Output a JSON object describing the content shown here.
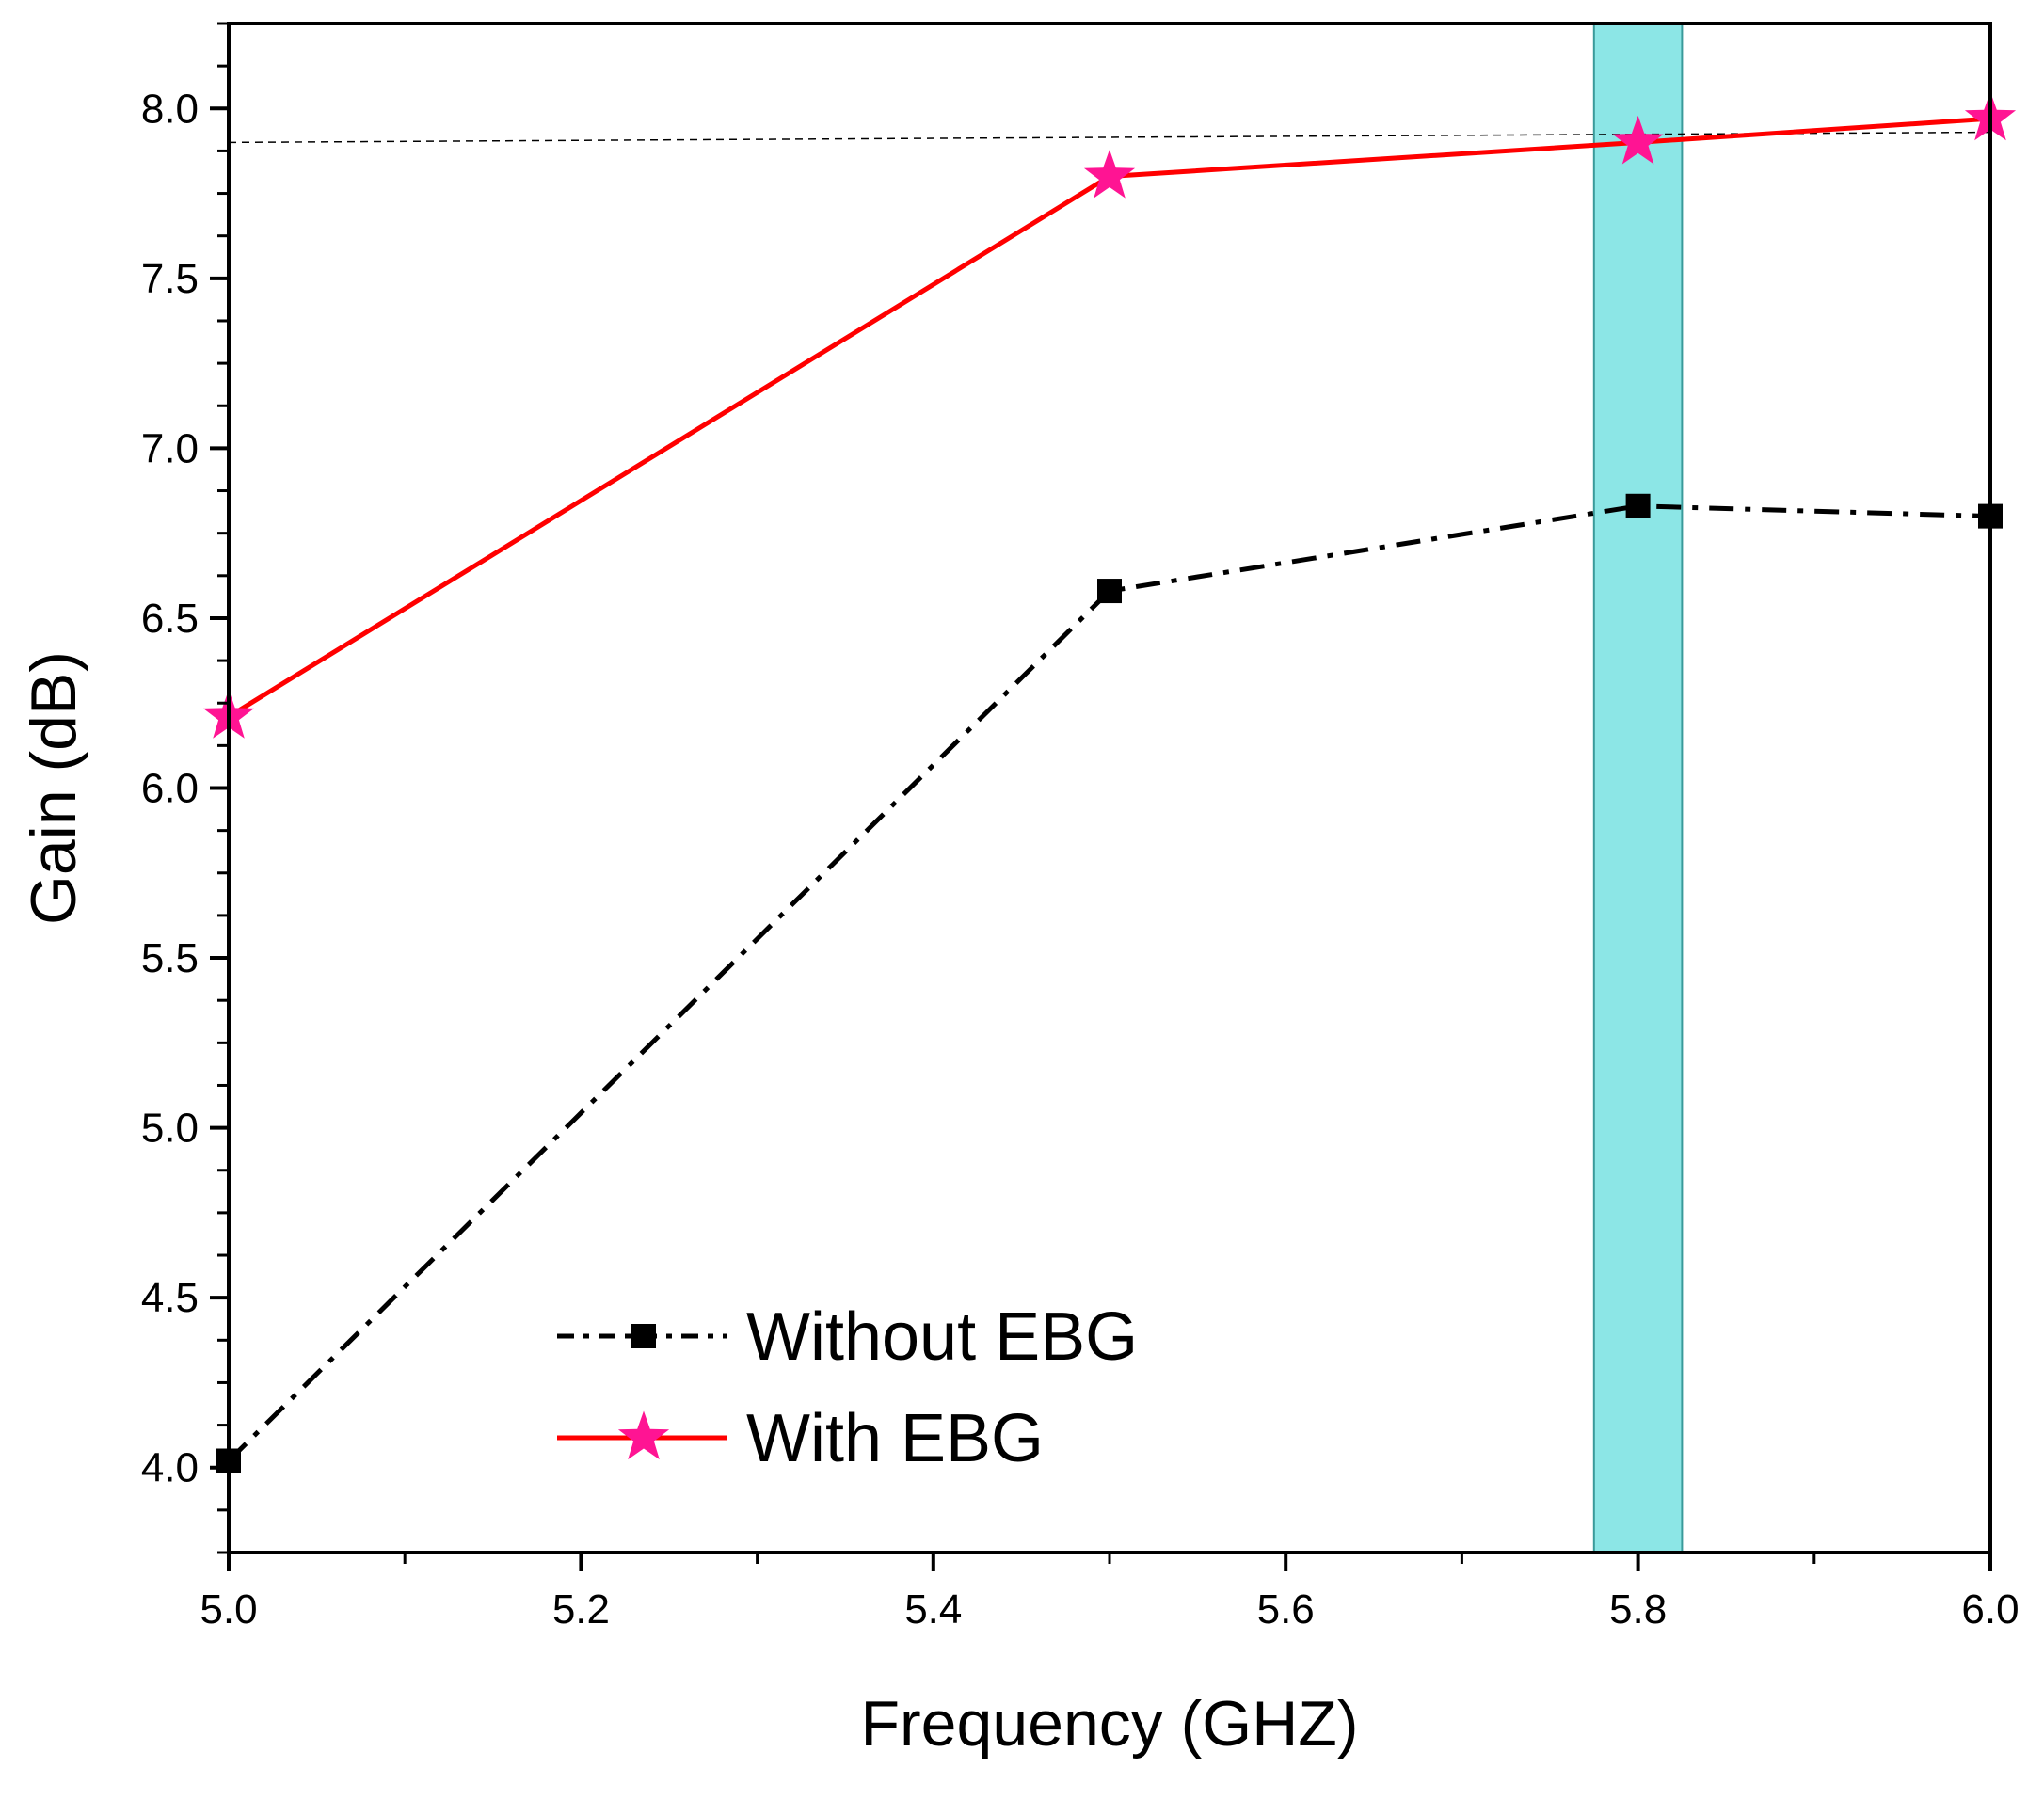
{
  "chart_data": {
    "type": "line",
    "title": "",
    "xlabel": "Frequency (GHZ)",
    "ylabel": "Gain (dB)",
    "xlim": [
      5.0,
      6.0
    ],
    "ylim": [
      3.75,
      8.25
    ],
    "x_ticks": [
      "5.0",
      "5.2",
      "5.4",
      "5.6",
      "5.8",
      "6.0"
    ],
    "y_ticks": [
      "4.0",
      "4.5",
      "5.0",
      "5.5",
      "6.0",
      "6.5",
      "7.0",
      "7.5",
      "8.0"
    ],
    "x": [
      5.0,
      5.5,
      5.8,
      6.0
    ],
    "series": [
      {
        "name": "Without EBG",
        "values": [
          4.02,
          6.58,
          6.83,
          6.8
        ],
        "color": "#000000",
        "line_style": "dash-dot",
        "marker": "square"
      },
      {
        "name": "With EBG",
        "values": [
          6.21,
          7.8,
          7.9,
          7.97
        ],
        "color": "#ff0000",
        "marker_color": "#ff1493",
        "line_style": "solid",
        "marker": "star"
      }
    ],
    "highlight_band": {
      "x_range": [
        5.775,
        5.825
      ],
      "color": "#8ce6e6"
    },
    "reference_line": {
      "y_start": 7.9,
      "y_end": 7.93,
      "style": "dotted"
    },
    "legend_position": "bottom-center",
    "grid": false
  }
}
